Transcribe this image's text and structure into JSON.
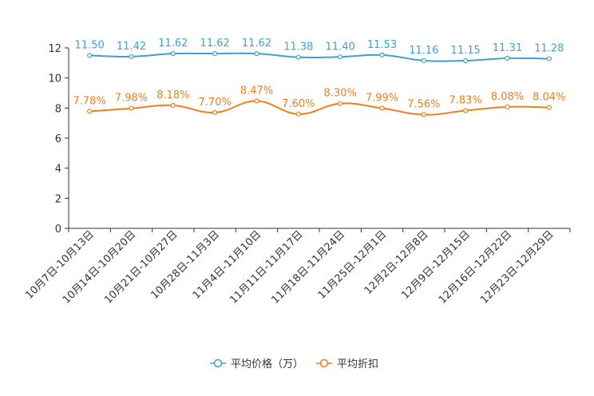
{
  "chart_data": {
    "type": "line",
    "categories": [
      "10月7日-10月13日",
      "10月14日-10月20日",
      "10月21日-10月27日",
      "10月28日-11月3日",
      "11月4日-11月10日",
      "11月11日-11月17日",
      "11月18日-11月24日",
      "11月25日-12月1日",
      "12月2日-12月8日",
      "12月9日-12月15日",
      "12月16日-12月22日",
      "12月23日-12月29日"
    ],
    "series": [
      {
        "name": "平均价格（万）",
        "color": "#3fa0d1",
        "values": [
          11.5,
          11.42,
          11.62,
          11.62,
          11.62,
          11.38,
          11.4,
          11.53,
          11.16,
          11.15,
          11.31,
          11.28
        ],
        "labels": [
          "11.50",
          "11.42",
          "11.62",
          "11.62",
          "11.62",
          "11.38",
          "11.40",
          "11.53",
          "11.16",
          "11.15",
          "11.31",
          "11.28"
        ]
      },
      {
        "name": "平均折扣",
        "color": "#f07e1e",
        "values": [
          7.78,
          7.98,
          8.18,
          7.7,
          8.47,
          7.6,
          8.3,
          7.99,
          7.56,
          7.83,
          8.08,
          8.04
        ],
        "labels": [
          "7.78%",
          "7.98%",
          "8.18%",
          "7.70%",
          "8.47%",
          "7.60%",
          "8.30%",
          "7.99%",
          "7.56%",
          "7.83%",
          "8.08%",
          "8.04%"
        ]
      }
    ],
    "yticks": [
      "0",
      "2",
      "4",
      "6",
      "8",
      "10",
      "12"
    ],
    "ylim": [
      0,
      12
    ],
    "title": "",
    "xlabel": "",
    "ylabel": "",
    "legend_position": "bottom-center"
  }
}
